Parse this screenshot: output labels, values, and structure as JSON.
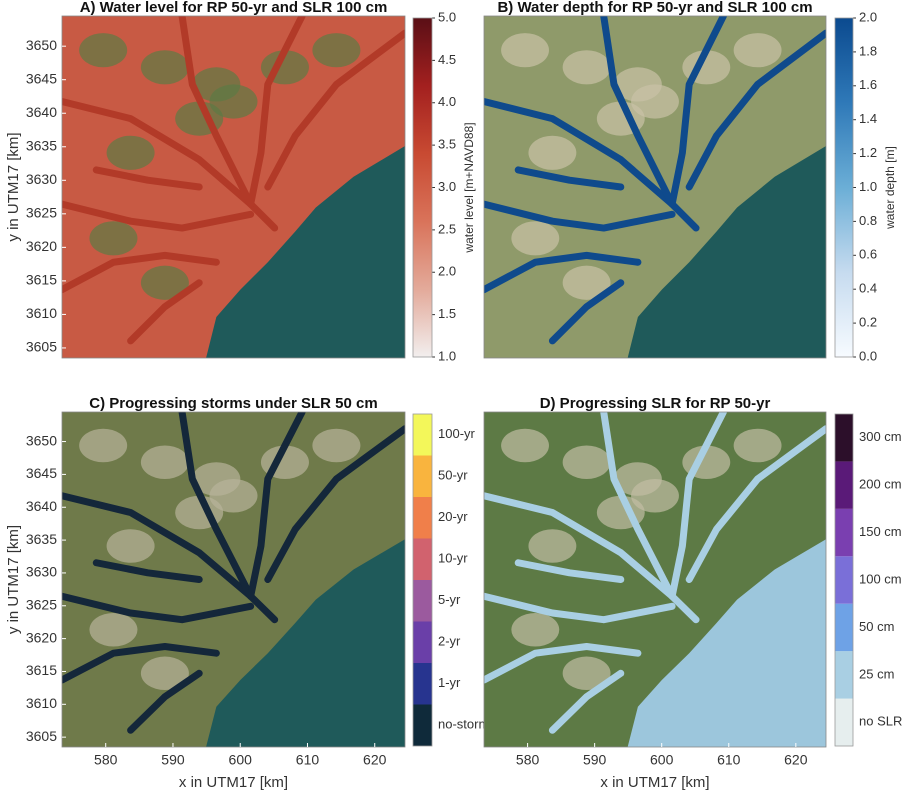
{
  "panels": [
    {
      "title": "A) Water level for RP 50-yr and SLR 100 cm",
      "ylabel": "y in UTM17 [km]",
      "ylim": [
        3603.5,
        3654.5
      ],
      "yticks": [
        3605,
        3610,
        3615,
        3620,
        3625,
        3630,
        3635,
        3640,
        3645,
        3650
      ],
      "colorbar": {
        "label": "water level [m+NAVD88]",
        "lim": [
          1,
          5
        ],
        "ticks": [
          {
            "value": 1,
            "label": "1.0"
          },
          1.5,
          {
            "value": 2,
            "label": "2.0"
          },
          2.5,
          {
            "value": 3,
            "label": "3.0"
          },
          3.5,
          {
            "value": 4,
            "label": "4.0"
          },
          4.5,
          {
            "value": 5,
            "label": "5.0"
          }
        ],
        "colors": [
          "#f2eeee",
          "#e3aa9a",
          "#d9735a",
          "#c84a32",
          "#a3201f",
          "#5a0f16"
        ]
      }
    },
    {
      "title": "B) Water depth for RP 50-yr and SLR 100 cm",
      "colorbar": {
        "label": "water depth [m]",
        "lim": [
          0,
          2
        ],
        "ticks": [
          {
            "value": 0,
            "label": "0.0"
          },
          0.2,
          0.4,
          0.6,
          0.8,
          {
            "value": 1,
            "label": "1.0"
          },
          1.2,
          1.4,
          1.6,
          1.8,
          {
            "value": 2,
            "label": "2.0"
          }
        ],
        "colors": [
          "#f7fbff",
          "#c6dbef",
          "#6baed6",
          "#2f79b8",
          "#0b4a8f"
        ]
      }
    },
    {
      "title": "C) Progressing storms under SLR 50 cm",
      "ylabel": "y in UTM17 [km]",
      "xlabel": "x in UTM17 [km]",
      "ylim": [
        3603.5,
        3654.5
      ],
      "yticks": [
        3605,
        3610,
        3615,
        3620,
        3625,
        3630,
        3635,
        3640,
        3645,
        3650
      ],
      "xlim": [
        573.5,
        624.5
      ],
      "xticks": [
        580,
        590,
        600,
        610,
        620
      ],
      "colorbar": {
        "categories": [
          "no-storm",
          "1-yr",
          "2-yr",
          "5-yr",
          "10-yr",
          "20-yr",
          "50-yr",
          "100-yr"
        ],
        "colors": [
          "#0f2a3a",
          "#27348f",
          "#6a3fa8",
          "#9b5a9e",
          "#d1626e",
          "#f07f4a",
          "#f9b43e",
          "#f3f75a"
        ]
      }
    },
    {
      "title": "D) Progressing SLR for RP 50-yr",
      "xlabel": "x in UTM17 [km]",
      "xlim": [
        573.5,
        624.5
      ],
      "xticks": [
        580,
        590,
        600,
        610,
        620
      ],
      "colorbar": {
        "categories": [
          "no SLR",
          "25 cm",
          "50 cm",
          "100 cm",
          "150 cm",
          "200 cm",
          "300 cm"
        ],
        "colors": [
          "#e6eeee",
          "#a9cfe3",
          "#6ea2e6",
          "#7a6fd8",
          "#7a3fb0",
          "#5a1a78",
          "#2c0f2a"
        ]
      }
    }
  ]
}
